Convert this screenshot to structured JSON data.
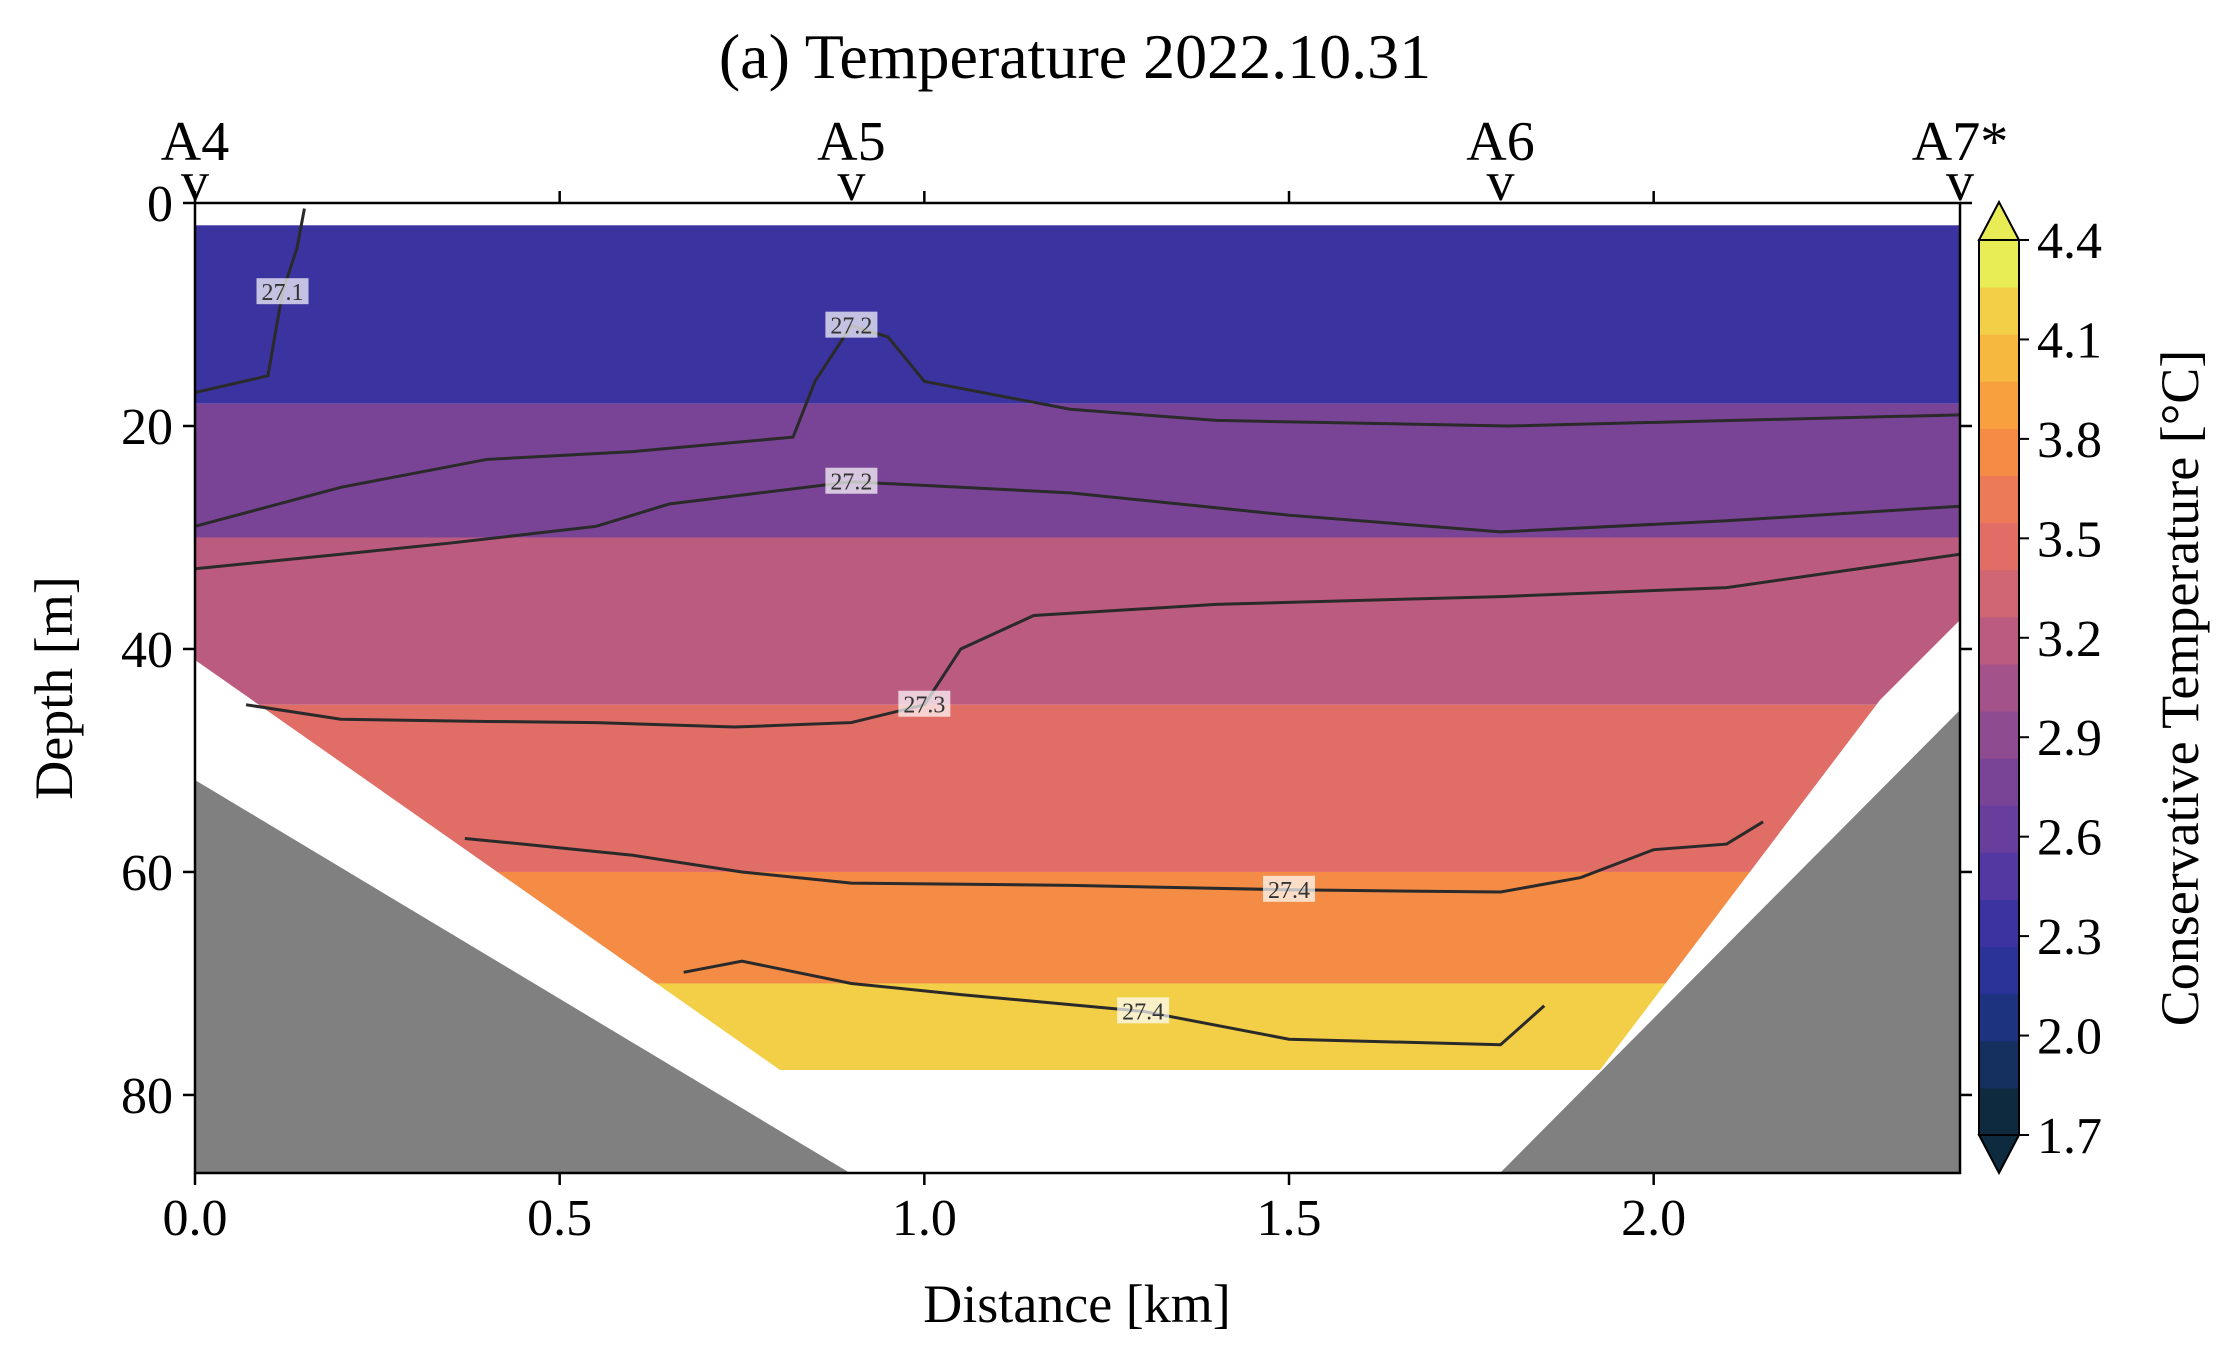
{
  "chart_data": {
    "type": "heatmap",
    "title": "(a) Temperature 2022.10.31",
    "xlabel": "Distance [km]",
    "ylabel": "Depth [m]",
    "xlim": [
      0.0,
      2.42
    ],
    "ylim": [
      87,
      0
    ],
    "x_ticks": [
      "0.0",
      "0.5",
      "1.0",
      "1.5",
      "2.0"
    ],
    "y_ticks": [
      "0",
      "20",
      "40",
      "60",
      "80"
    ],
    "stations": [
      {
        "name": "A4",
        "x": 0.0
      },
      {
        "name": "A5",
        "x": 0.9
      },
      {
        "name": "A6",
        "x": 1.79
      },
      {
        "name": "A7*",
        "x": 2.42
      }
    ],
    "station_marker": "v",
    "colorbar": {
      "label": "Conservative Temperature [°C]",
      "ticks": [
        "1.7",
        "2.0",
        "2.3",
        "2.6",
        "2.9",
        "3.2",
        "3.5",
        "3.8",
        "4.1",
        "4.4"
      ],
      "min": 1.7,
      "max": 4.4,
      "extend": "both",
      "levels": [
        1.7,
        1.85,
        2.0,
        2.15,
        2.3,
        2.45,
        2.6,
        2.75,
        2.9,
        3.05,
        3.2,
        3.35,
        3.5,
        3.65,
        3.8,
        3.95,
        4.1,
        4.25,
        4.4
      ],
      "colors": [
        "#0d2a3f",
        "#152f5e",
        "#1e3380",
        "#2c3398",
        "#3b34a0",
        "#5238a0",
        "#673e9b",
        "#7a4496",
        "#8e4b90",
        "#a4528a",
        "#bc5b80",
        "#d06574",
        "#e06d66",
        "#ec7a58",
        "#f58c46",
        "#f8a03e",
        "#f6b83e",
        "#f2cf47",
        "#e8ec55"
      ]
    },
    "temperature_bands": [
      {
        "depth_range": [
          2,
          18
        ],
        "value": 2.4
      },
      {
        "depth_range": [
          18,
          30
        ],
        "value": 2.8
      },
      {
        "depth_range": [
          30,
          45
        ],
        "value": 3.2
      },
      {
        "depth_range": [
          45,
          60
        ],
        "value": 3.5
      },
      {
        "depth_range": [
          60,
          70
        ],
        "value": 3.9
      },
      {
        "depth_range": [
          70,
          78
        ],
        "value": 4.3
      }
    ],
    "density_contours": [
      {
        "label": "27.1",
        "x": [
          0.0,
          0.1,
          0.12,
          0.14,
          0.15
        ],
        "y": [
          17,
          15.5,
          8,
          4,
          0.5
        ]
      },
      {
        "label": "27.2",
        "x": [
          0.0,
          0.2,
          0.4,
          0.6,
          0.82,
          0.85,
          0.9,
          0.95,
          1.0,
          1.2,
          1.4,
          1.8,
          2.42
        ],
        "y": [
          29,
          25.5,
          23,
          22.3,
          21,
          16,
          11,
          12,
          16,
          18.5,
          19.5,
          20,
          19
        ]
      },
      {
        "label": "27.2",
        "x": [
          0.0,
          0.2,
          0.35,
          0.55,
          0.65,
          0.9,
          1.2,
          1.5,
          1.79,
          2.1,
          2.42
        ],
        "y": [
          32.8,
          31.5,
          30.5,
          29,
          27,
          25,
          26,
          28,
          29.5,
          28.5,
          27.2
        ]
      },
      {
        "label": "27.3",
        "x": [
          0.07,
          0.2,
          0.4,
          0.55,
          0.74,
          0.9,
          1.0,
          1.05,
          1.15,
          1.4,
          1.79,
          2.1,
          2.42
        ],
        "y": [
          45,
          46.3,
          46.5,
          46.6,
          47,
          46.6,
          45,
          40,
          37,
          36,
          35.3,
          34.5,
          31.5
        ]
      },
      {
        "label": "27.4",
        "x": [
          0.37,
          0.45,
          0.6,
          0.75,
          0.9,
          1.2,
          1.5,
          1.79,
          1.9,
          2.0,
          2.1,
          2.15
        ],
        "y": [
          57,
          57.5,
          58.5,
          60,
          61,
          61.2,
          61.6,
          61.8,
          60.5,
          58,
          57.5,
          55.5
        ]
      },
      {
        "label": "27.4",
        "x": [
          0.67,
          0.75,
          0.9,
          1.05,
          1.3,
          1.5,
          1.79,
          1.85
        ],
        "y": [
          69,
          68,
          70,
          71,
          72.5,
          75,
          75.5,
          72
        ]
      }
    ],
    "grid": false,
    "legend": "none"
  }
}
